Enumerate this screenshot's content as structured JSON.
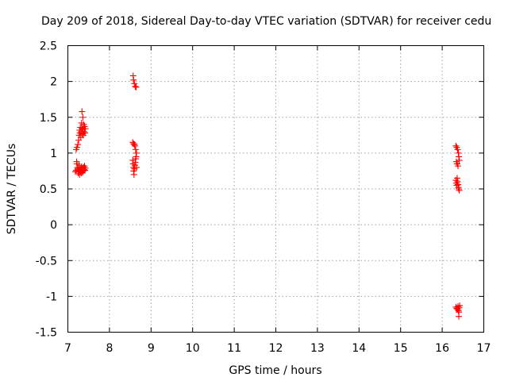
{
  "chart_data": {
    "type": "scatter",
    "title": "Day 209 of 2018, Sidereal Day-to-day VTEC variation (SDTVAR) for receiver cedu",
    "xlabel": "GPS time / hours",
    "ylabel": "SDTVAR / TECUs",
    "xlim": [
      7,
      17
    ],
    "ylim": [
      -1.5,
      2.5
    ],
    "xticks": [
      7,
      8,
      9,
      10,
      11,
      12,
      13,
      14,
      15,
      16,
      17
    ],
    "yticks": [
      -1.5,
      -1,
      -0.5,
      0,
      0.5,
      1,
      1.5,
      2,
      2.5
    ],
    "xtick_labels": [
      "7",
      "8",
      "9",
      "10",
      "11",
      "12",
      "13",
      "14",
      "15",
      "16",
      "17"
    ],
    "ytick_labels": [
      "-1.5",
      "-1",
      "-0.5",
      "0",
      "0.5",
      "1",
      "1.5",
      "2",
      "2.5"
    ],
    "grid": true,
    "marker": "+",
    "marker_color": "#ff0000",
    "series": [
      {
        "name": "SDTVAR",
        "points": [
          [
            7.18,
            0.74
          ],
          [
            7.2,
            0.76
          ],
          [
            7.21,
            0.88
          ],
          [
            7.22,
            0.85
          ],
          [
            7.23,
            0.8
          ],
          [
            7.24,
            0.78
          ],
          [
            7.25,
            0.72
          ],
          [
            7.26,
            0.75
          ],
          [
            7.27,
            0.83
          ],
          [
            7.28,
            0.7
          ],
          [
            7.29,
            0.77
          ],
          [
            7.3,
            0.74
          ],
          [
            7.31,
            0.79
          ],
          [
            7.32,
            0.72
          ],
          [
            7.33,
            0.81
          ],
          [
            7.34,
            0.76
          ],
          [
            7.35,
            0.73
          ],
          [
            7.36,
            0.79
          ],
          [
            7.37,
            0.75
          ],
          [
            7.38,
            0.8
          ],
          [
            7.39,
            0.77
          ],
          [
            7.4,
            0.82
          ],
          [
            7.41,
            0.76
          ],
          [
            7.42,
            0.79
          ],
          [
            7.2,
            1.05
          ],
          [
            7.22,
            1.08
          ],
          [
            7.24,
            1.12
          ],
          [
            7.26,
            1.18
          ],
          [
            7.27,
            1.25
          ],
          [
            7.28,
            1.32
          ],
          [
            7.29,
            1.28
          ],
          [
            7.3,
            1.36
          ],
          [
            7.31,
            1.22
          ],
          [
            7.32,
            1.3
          ],
          [
            7.33,
            1.42
          ],
          [
            7.34,
            1.35
          ],
          [
            7.34,
            1.58
          ],
          [
            7.35,
            1.27
          ],
          [
            7.36,
            1.33
          ],
          [
            7.36,
            1.5
          ],
          [
            7.37,
            1.25
          ],
          [
            7.38,
            1.4
          ],
          [
            7.39,
            1.3
          ],
          [
            7.4,
            1.37
          ],
          [
            7.41,
            1.28
          ],
          [
            7.42,
            1.34
          ],
          [
            8.57,
            2.08
          ],
          [
            8.58,
            2.02
          ],
          [
            8.6,
            1.97
          ],
          [
            8.62,
            1.93
          ],
          [
            8.64,
            1.92
          ],
          [
            8.56,
            1.15
          ],
          [
            8.58,
            1.13
          ],
          [
            8.6,
            1.12
          ],
          [
            8.61,
            1.1
          ],
          [
            8.63,
            1.05
          ],
          [
            8.65,
            1.0
          ],
          [
            8.56,
            0.9
          ],
          [
            8.57,
            0.85
          ],
          [
            8.58,
            0.8
          ],
          [
            8.58,
            0.75
          ],
          [
            8.59,
            0.7
          ],
          [
            8.6,
            0.78
          ],
          [
            8.61,
            0.83
          ],
          [
            8.62,
            0.87
          ],
          [
            8.63,
            0.92
          ],
          [
            8.64,
            0.95
          ],
          [
            8.65,
            0.8
          ],
          [
            16.33,
            1.1
          ],
          [
            16.35,
            1.08
          ],
          [
            16.37,
            1.05
          ],
          [
            16.39,
            1.0
          ],
          [
            16.4,
            0.95
          ],
          [
            16.41,
            0.9
          ],
          [
            16.34,
            0.88
          ],
          [
            16.36,
            0.85
          ],
          [
            16.38,
            0.82
          ],
          [
            16.33,
            0.62
          ],
          [
            16.34,
            0.58
          ],
          [
            16.35,
            0.55
          ],
          [
            16.36,
            0.65
          ],
          [
            16.37,
            0.6
          ],
          [
            16.38,
            0.56
          ],
          [
            16.39,
            0.52
          ],
          [
            16.4,
            0.5
          ],
          [
            16.41,
            0.48
          ],
          [
            16.33,
            -1.15
          ],
          [
            16.35,
            -1.17
          ],
          [
            16.37,
            -1.18
          ],
          [
            16.38,
            -1.14
          ],
          [
            16.39,
            -1.2
          ],
          [
            16.4,
            -1.22
          ],
          [
            16.41,
            -1.16
          ],
          [
            16.42,
            -1.13
          ],
          [
            16.4,
            -1.28
          ]
        ]
      }
    ]
  }
}
